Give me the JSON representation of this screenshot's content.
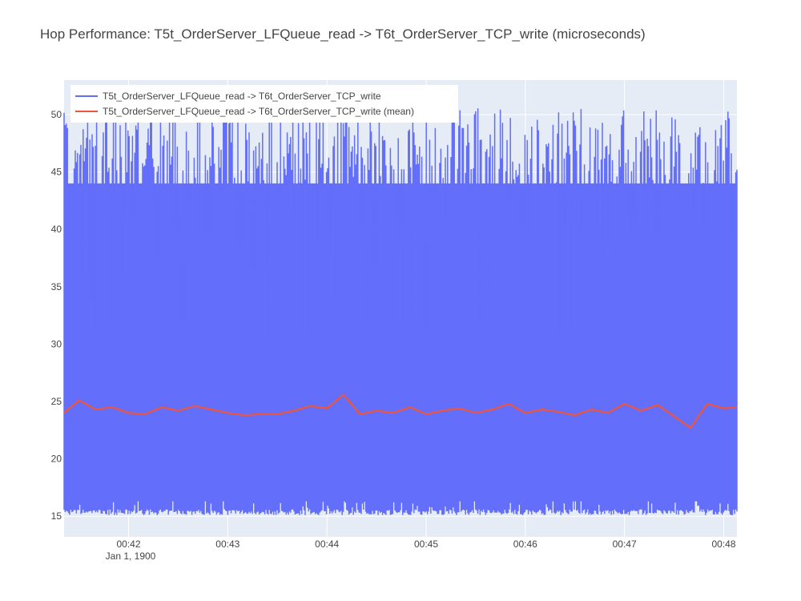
{
  "chart_data": {
    "type": "line",
    "title": "Hop Performance: T5t_OrderServer_LFQueue_read -> T6t_OrderServer_TCP_write (microseconds)",
    "xlabel": "",
    "ylabel": "",
    "x_axis": {
      "type": "date",
      "range": [
        "1900-01-01 00:41:21",
        "1900-01-01 00:48:08"
      ],
      "ticks": [
        "00:42",
        "00:43",
        "00:44",
        "00:45",
        "00:46",
        "00:47",
        "00:48"
      ],
      "tick_values": [
        "1900-01-01 00:42:00",
        "1900-01-01 00:43:00",
        "1900-01-01 00:44:00",
        "1900-01-01 00:45:00",
        "1900-01-01 00:46:00",
        "1900-01-01 00:47:00",
        "1900-01-01 00:48:00"
      ],
      "date_label": "Jan 1, 1900"
    },
    "y_axis": {
      "range": [
        13.2,
        53.0
      ],
      "ticks": [
        15,
        20,
        25,
        30,
        35,
        40,
        45,
        50
      ]
    },
    "grid": true,
    "legend_position": "top-left",
    "series": [
      {
        "name": "T5t_OrderServer_LFQueue_read -> T6t_OrderServer_TCP_write",
        "color": "#636efa",
        "kind": "raw",
        "value_min": 15.1,
        "value_max": 50.6
      },
      {
        "name": "T5t_OrderServer_LFQueue_read -> T6t_OrderServer_TCP_write (mean)",
        "color": "#ef553b",
        "kind": "mean",
        "x": [
          "00:41:21",
          "00:41:30",
          "00:41:40",
          "00:41:50",
          "00:42:00",
          "00:42:10",
          "00:42:20",
          "00:42:30",
          "00:42:40",
          "00:42:50",
          "00:43:00",
          "00:43:10",
          "00:43:20",
          "00:43:30",
          "00:43:40",
          "00:43:50",
          "00:44:00",
          "00:44:10",
          "00:44:20",
          "00:44:30",
          "00:44:40",
          "00:44:50",
          "00:45:00",
          "00:45:10",
          "00:45:20",
          "00:45:30",
          "00:45:40",
          "00:45:50",
          "00:46:00",
          "00:46:10",
          "00:46:20",
          "00:46:30",
          "00:46:40",
          "00:46:50",
          "00:47:00",
          "00:47:10",
          "00:47:20",
          "00:47:30",
          "00:47:40",
          "00:47:50",
          "00:48:00",
          "00:48:08"
        ],
        "values": [
          24.0,
          25.1,
          24.3,
          24.5,
          24.0,
          23.9,
          24.5,
          24.2,
          24.6,
          24.3,
          24.0,
          23.8,
          23.9,
          23.9,
          24.2,
          24.6,
          24.4,
          25.6,
          23.9,
          24.2,
          24.0,
          24.5,
          23.9,
          24.2,
          24.4,
          24.0,
          24.3,
          24.8,
          24.0,
          24.3,
          24.1,
          23.8,
          24.3,
          24.0,
          24.8,
          24.2,
          24.7,
          23.7,
          22.7,
          24.8,
          24.4,
          24.5
        ]
      }
    ]
  }
}
